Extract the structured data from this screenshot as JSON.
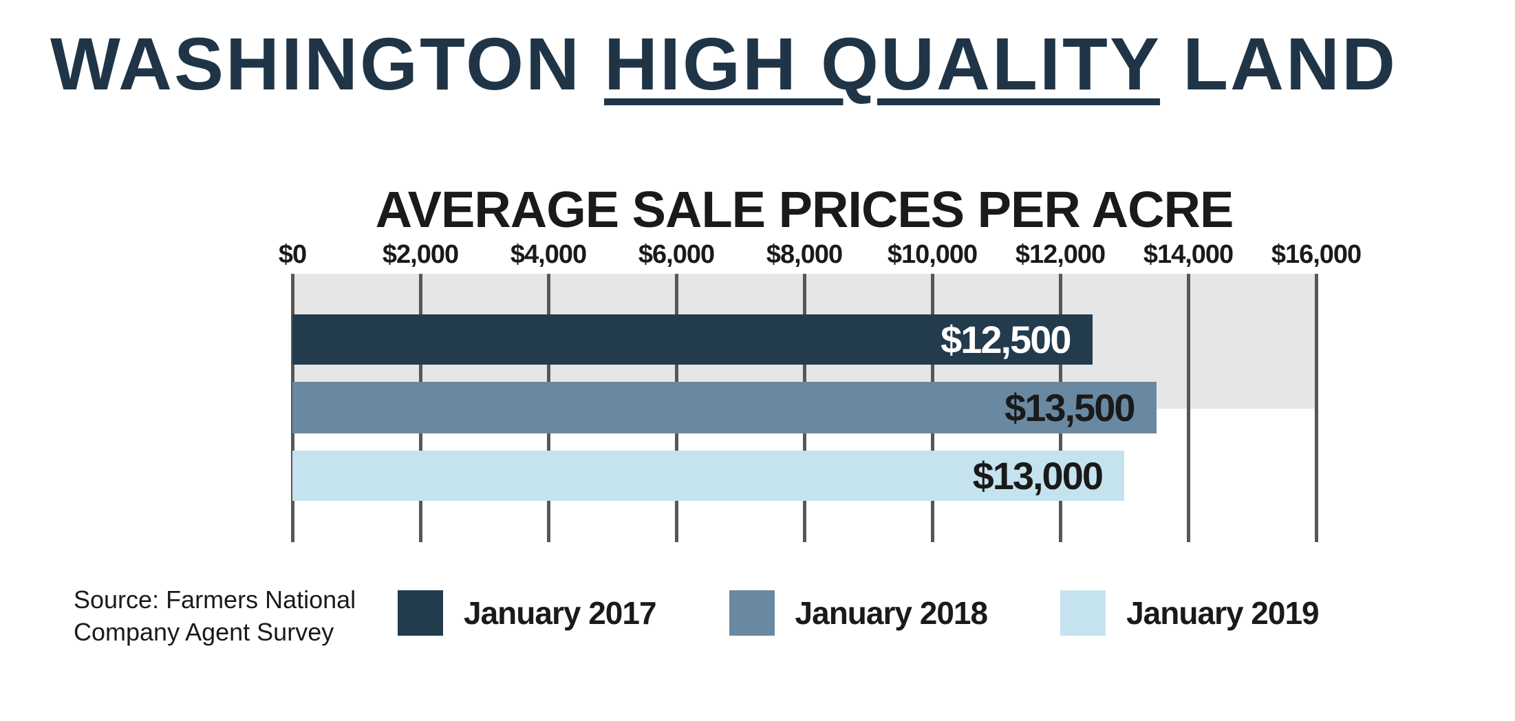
{
  "title": {
    "prefix": "WASHINGTON ",
    "underlined": "HIGH QUALITY",
    "suffix": " LAND",
    "color": "#1f3547"
  },
  "chart_data": {
    "type": "bar",
    "orientation": "horizontal",
    "title": "AVERAGE SALE PRICES PER ACRE",
    "categories": [
      "January 2017",
      "January 2018",
      "January 2019"
    ],
    "values": [
      12500,
      13500,
      13000
    ],
    "value_labels": [
      "$12,500",
      "$13,500",
      "$13,000"
    ],
    "bar_colors": [
      "#223b4d",
      "#6989a2",
      "#c5e2ef"
    ],
    "label_colors": [
      "#ffffff",
      "#1a1a1a",
      "#1a1a1a"
    ],
    "xlim": [
      0,
      16000
    ],
    "x_ticks": [
      0,
      2000,
      4000,
      6000,
      8000,
      10000,
      12000,
      14000,
      16000
    ],
    "x_tick_labels": [
      "$0",
      "$2,000",
      "$4,000",
      "$6,000",
      "$8,000",
      "$10,000",
      "$12,000",
      "$14,000",
      "$16,000"
    ],
    "grid": true,
    "gridline_color": "#575757",
    "plot_band_color": "#e6e6e6",
    "legend_position": "bottom"
  },
  "legend": {
    "items": [
      {
        "label": "January 2017",
        "color": "#223b4d"
      },
      {
        "label": "January 2018",
        "color": "#6989a2"
      },
      {
        "label": "January 2019",
        "color": "#c5e2ef"
      }
    ]
  },
  "source": {
    "line1": "Source: Farmers National",
    "line2": "Company Agent Survey"
  }
}
